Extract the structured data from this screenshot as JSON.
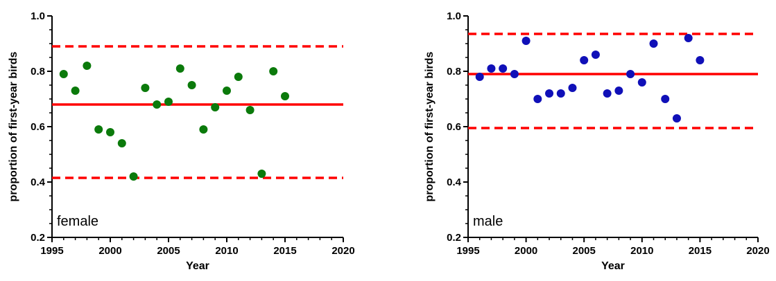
{
  "chart_data": [
    {
      "type": "scatter",
      "panel_label": "female",
      "xlabel": "Year",
      "ylabel": "proportion of first-year birds",
      "xlim": [
        1995,
        2020
      ],
      "ylim": [
        0.2,
        1.0
      ],
      "x_ticks": [
        1995,
        2000,
        2005,
        2010,
        2015,
        2020
      ],
      "y_ticks": [
        0.2,
        0.4,
        0.6,
        0.8,
        1.0
      ],
      "x_tick_labels": [
        "1995",
        "2000",
        "2005",
        "2010",
        "2015",
        "2020"
      ],
      "y_tick_labels": [
        "0.2",
        "0.4",
        "0.6",
        "0.8",
        "1.0"
      ],
      "grid": false,
      "point_color": "#0b7a0b",
      "points": [
        {
          "x": 1996,
          "y": 0.79
        },
        {
          "x": 1997,
          "y": 0.73
        },
        {
          "x": 1998,
          "y": 0.82
        },
        {
          "x": 1999,
          "y": 0.59
        },
        {
          "x": 2000,
          "y": 0.58
        },
        {
          "x": 2001,
          "y": 0.54
        },
        {
          "x": 2002,
          "y": 0.42
        },
        {
          "x": 2003,
          "y": 0.74
        },
        {
          "x": 2004,
          "y": 0.68
        },
        {
          "x": 2005,
          "y": 0.69
        },
        {
          "x": 2006,
          "y": 0.81
        },
        {
          "x": 2007,
          "y": 0.75
        },
        {
          "x": 2008,
          "y": 0.59
        },
        {
          "x": 2009,
          "y": 0.67
        },
        {
          "x": 2010,
          "y": 0.73
        },
        {
          "x": 2011,
          "y": 0.78
        },
        {
          "x": 2012,
          "y": 0.66
        },
        {
          "x": 2013,
          "y": 0.43
        },
        {
          "x": 2014,
          "y": 0.8
        },
        {
          "x": 2015,
          "y": 0.71
        }
      ],
      "mean_line": 0.68,
      "limit_lines": [
        0.89,
        0.415
      ],
      "line_color": "#ff0000"
    },
    {
      "type": "scatter",
      "panel_label": "male",
      "xlabel": "Year",
      "ylabel": "proportion of first-year birds",
      "xlim": [
        1995,
        2020
      ],
      "ylim": [
        0.2,
        1.0
      ],
      "x_ticks": [
        1995,
        2000,
        2005,
        2010,
        2015,
        2020
      ],
      "y_ticks": [
        0.2,
        0.4,
        0.6,
        0.8,
        1.0
      ],
      "x_tick_labels": [
        "1995",
        "2000",
        "2005",
        "2010",
        "2015",
        "2020"
      ],
      "y_tick_labels": [
        "0.2",
        "0.4",
        "0.6",
        "0.8",
        "1.0"
      ],
      "grid": false,
      "point_color": "#1010b8",
      "points": [
        {
          "x": 1996,
          "y": 0.78
        },
        {
          "x": 1997,
          "y": 0.81
        },
        {
          "x": 1998,
          "y": 0.81
        },
        {
          "x": 1999,
          "y": 0.79
        },
        {
          "x": 2000,
          "y": 0.91
        },
        {
          "x": 2001,
          "y": 0.7
        },
        {
          "x": 2002,
          "y": 0.72
        },
        {
          "x": 2003,
          "y": 0.72
        },
        {
          "x": 2004,
          "y": 0.74
        },
        {
          "x": 2005,
          "y": 0.84
        },
        {
          "x": 2006,
          "y": 0.86
        },
        {
          "x": 2007,
          "y": 0.72
        },
        {
          "x": 2008,
          "y": 0.73
        },
        {
          "x": 2009,
          "y": 0.79
        },
        {
          "x": 2010,
          "y": 0.76
        },
        {
          "x": 2011,
          "y": 0.9
        },
        {
          "x": 2012,
          "y": 0.7
        },
        {
          "x": 2013,
          "y": 0.63
        },
        {
          "x": 2014,
          "y": 0.92
        },
        {
          "x": 2015,
          "y": 0.84
        }
      ],
      "mean_line": 0.79,
      "limit_lines": [
        0.935,
        0.595
      ],
      "line_color": "#ff0000"
    }
  ]
}
